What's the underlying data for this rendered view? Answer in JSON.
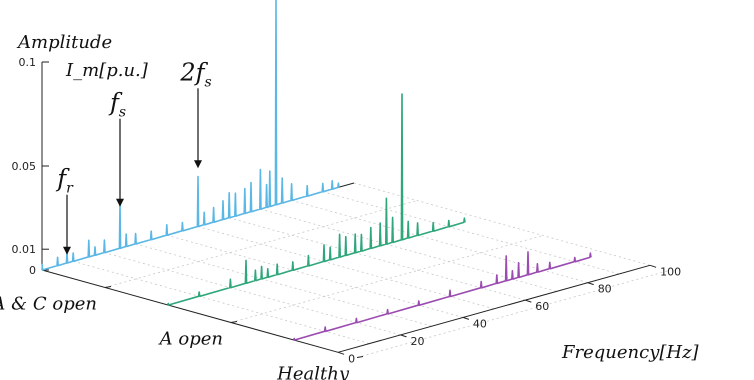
{
  "chart_data": {
    "type": "line",
    "chart_style": "3d-waterfall",
    "title": "",
    "z_label_line1": "Amplitude",
    "z_label_line2": "I_m[p.u.]",
    "xlabel": "Frequency[Hz]",
    "xlim": [
      0,
      100
    ],
    "x_ticks": [
      "0",
      "20",
      "40",
      "60",
      "80",
      "100"
    ],
    "zlim": [
      0,
      0.1
    ],
    "z_ticks": [
      "0",
      "0.01",
      "0.05",
      "0.1"
    ],
    "categories": [
      "A & C open",
      "A open",
      "Healthy"
    ],
    "series": [
      {
        "name": "A & C open",
        "color": "#5bb8e6",
        "points": [
          [
            0,
            0.003
          ],
          [
            5,
            0.004
          ],
          [
            8,
            0.005
          ],
          [
            10,
            0.004
          ],
          [
            15,
            0.008
          ],
          [
            17,
            0.004
          ],
          [
            20,
            0.006
          ],
          [
            25,
            0.022
          ],
          [
            27,
            0.006
          ],
          [
            30,
            0.005
          ],
          [
            35,
            0.004
          ],
          [
            40,
            0.005
          ],
          [
            45,
            0.004
          ],
          [
            50,
            0.024
          ],
          [
            52,
            0.006
          ],
          [
            55,
            0.007
          ],
          [
            58,
            0.009
          ],
          [
            60,
            0.012
          ],
          [
            62,
            0.011
          ],
          [
            65,
            0.012
          ],
          [
            67,
            0.014
          ],
          [
            70,
            0.019
          ],
          [
            72,
            0.011
          ],
          [
            73,
            0.017
          ],
          [
            75,
            0.1
          ],
          [
            77,
            0.012
          ],
          [
            80,
            0.008
          ],
          [
            85,
            0.005
          ],
          [
            90,
            0.004
          ],
          [
            93,
            0.004
          ],
          [
            95,
            0.002
          ]
        ]
      },
      {
        "name": "A open",
        "color": "#2fa77a",
        "points": [
          [
            0,
            0.001
          ],
          [
            10,
            0.002
          ],
          [
            20,
            0.004
          ],
          [
            25,
            0.011
          ],
          [
            28,
            0.005
          ],
          [
            30,
            0.006
          ],
          [
            32,
            0.004
          ],
          [
            35,
            0.005
          ],
          [
            40,
            0.004
          ],
          [
            45,
            0.005
          ],
          [
            50,
            0.008
          ],
          [
            52,
            0.006
          ],
          [
            55,
            0.011
          ],
          [
            57,
            0.009
          ],
          [
            60,
            0.009
          ],
          [
            62,
            0.008
          ],
          [
            65,
            0.01
          ],
          [
            68,
            0.011
          ],
          [
            70,
            0.022
          ],
          [
            72,
            0.012
          ],
          [
            75,
            0.07
          ],
          [
            77,
            0.008
          ],
          [
            80,
            0.006
          ],
          [
            85,
            0.004
          ],
          [
            90,
            0.003
          ],
          [
            95,
            0.002
          ]
        ]
      },
      {
        "name": "Healthy",
        "color": "#9b4cb0",
        "points": [
          [
            0,
            0.001
          ],
          [
            10,
            0.002
          ],
          [
            20,
            0.002
          ],
          [
            30,
            0.002
          ],
          [
            40,
            0.002
          ],
          [
            50,
            0.003
          ],
          [
            60,
            0.003
          ],
          [
            65,
            0.004
          ],
          [
            68,
            0.012
          ],
          [
            70,
            0.004
          ],
          [
            72,
            0.007
          ],
          [
            75,
            0.011
          ],
          [
            78,
            0.004
          ],
          [
            82,
            0.003
          ],
          [
            90,
            0.002
          ],
          [
            95,
            0.002
          ]
        ]
      }
    ],
    "annotations": [
      {
        "label": "f",
        "sub": "r",
        "x": 8
      },
      {
        "label": "f",
        "sub": "s",
        "x": 25
      },
      {
        "label": "2f",
        "sub": "s",
        "x": 50
      }
    ],
    "grid": true,
    "legend": "none"
  }
}
